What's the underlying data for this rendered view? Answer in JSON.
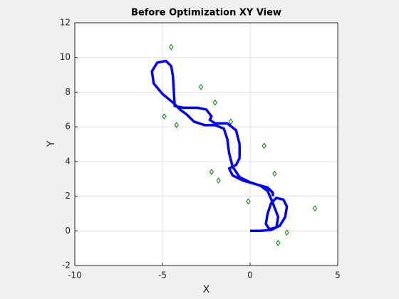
{
  "chart_data": {
    "type": "line",
    "title": "Before Optimization XY View",
    "xlabel": "X",
    "ylabel": "Y",
    "xlim": [
      -10,
      5
    ],
    "ylim": [
      -2,
      12
    ],
    "xticks": [
      -10,
      -5,
      0,
      5
    ],
    "yticks": [
      -2,
      0,
      2,
      4,
      6,
      8,
      10,
      12
    ],
    "grid": true,
    "series": [
      {
        "color": "#0000ff",
        "mode": "line",
        "x": [
          0,
          0.6,
          1.2,
          1.7,
          2.0,
          2.1,
          1.9,
          1.5,
          1.2,
          1.0,
          0.9,
          1.1,
          1.5,
          1.6,
          1.3,
          1.0,
          0.6,
          0.0,
          -0.6,
          -1.0,
          -1.2,
          -1.3,
          -1.5,
          -2.0,
          -2.6,
          -3.2,
          -3.6,
          -4.0,
          -4.4,
          -5.0,
          -5.5,
          -5.6,
          -5.3,
          -4.8,
          -4.5,
          -4.4,
          -4.3,
          -3.8,
          -3.0,
          -2.5,
          -2.2,
          -2.3,
          -2.0,
          -1.3,
          -0.8,
          -0.6,
          -0.6,
          -0.8,
          -1.2,
          -1.0,
          -0.4,
          0.3,
          1.0,
          1.3,
          1.3
        ],
        "y": [
          0,
          0,
          0.05,
          0.3,
          0.8,
          1.4,
          1.8,
          1.9,
          1.6,
          1.0,
          0.4,
          0.1,
          0.2,
          0.8,
          1.6,
          2.3,
          2.6,
          2.8,
          3.1,
          3.7,
          4.5,
          5.3,
          5.9,
          6.1,
          6.1,
          6.3,
          6.7,
          7.0,
          7.4,
          7.9,
          8.5,
          9.2,
          9.7,
          9.8,
          9.5,
          8.9,
          7.2,
          7.1,
          7.1,
          7.0,
          6.6,
          6.4,
          6.2,
          6.2,
          5.8,
          5.0,
          4.2,
          3.8,
          3.6,
          3.2,
          2.9,
          2.7,
          2.5,
          2.2,
          2.0
        ]
      },
      {
        "color": "#008000",
        "mode": "markers",
        "x": [
          -4.5,
          -2.8,
          -2.0,
          -1.1,
          -4.9,
          -4.2,
          -2.2,
          -1.8,
          0.8,
          1.4,
          -0.1,
          3.7,
          2.1,
          1.6
        ],
        "y": [
          10.6,
          8.3,
          7.4,
          6.3,
          6.6,
          6.1,
          3.4,
          2.9,
          4.9,
          3.3,
          1.7,
          1.3,
          -0.1,
          -0.7
        ]
      }
    ]
  }
}
